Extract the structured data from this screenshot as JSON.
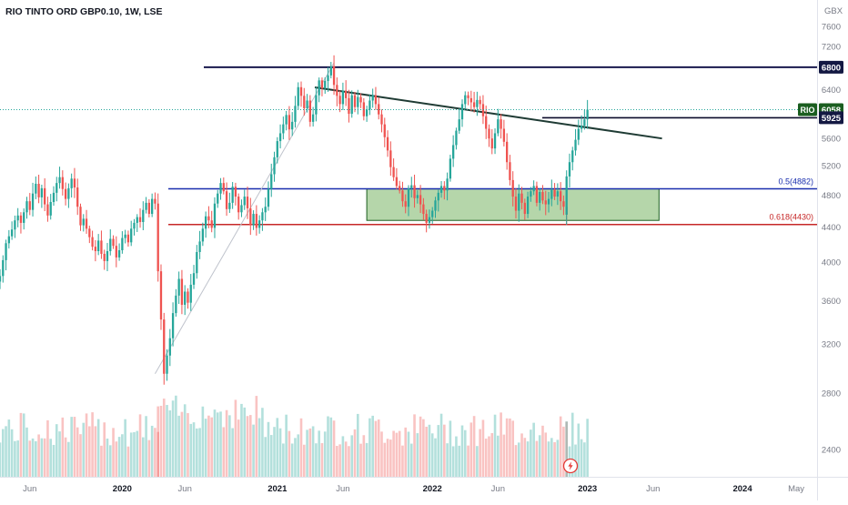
{
  "chart_data": {
    "type": "candlestick",
    "title": "RIO TINTO ORD GBP0.10, 1W, LSE",
    "currency": "GBX",
    "ylim": [
      2100,
      7900
    ],
    "y_ticks": [
      2400,
      2800,
      3200,
      3600,
      4000,
      4400,
      4800,
      5200,
      5600,
      6000,
      6400,
      6800,
      7200,
      7600
    ],
    "x_range": [
      "2019-03-25",
      "2024-06-24"
    ],
    "x_ticks": [
      {
        "label": "Jun",
        "date": "2019-06-03"
      },
      {
        "label": "2020",
        "date": "2020-01-06"
      },
      {
        "label": "Jun",
        "date": "2020-06-01"
      },
      {
        "label": "2021",
        "date": "2021-01-04"
      },
      {
        "label": "Jun",
        "date": "2021-06-07"
      },
      {
        "label": "2022",
        "date": "2022-01-03"
      },
      {
        "label": "Jun",
        "date": "2022-06-06"
      },
      {
        "label": "2023",
        "date": "2023-01-02"
      },
      {
        "label": "Jun",
        "date": "2023-06-05"
      },
      {
        "label": "2024",
        "date": "2024-01-01"
      },
      {
        "label": "May",
        "date": "2024-05-06"
      }
    ],
    "series_weekly_closes": [
      {
        "start": "2019-03-25",
        "closes": [
          3850,
          4020,
          4210,
          4290,
          4370,
          4480,
          4540,
          4450,
          4580,
          4720,
          4610,
          4820,
          4950,
          4770,
          4890,
          4680,
          4540,
          4710,
          4830,
          4960,
          5040,
          4880,
          4750,
          4890,
          5020,
          4900,
          4650,
          4420,
          4500,
          4380,
          4280,
          4170,
          4120,
          4240,
          4090,
          4010,
          4120,
          4260,
          4180,
          4050,
          4130,
          4270,
          4310,
          4220,
          4380,
          4450,
          4520,
          4460,
          4610,
          4700,
          4560,
          4750,
          4690,
          4460
        ]
      },
      {
        "start": "2020-03-30",
        "closes": [
          3900,
          3420,
          2950,
          3100,
          3250,
          3480,
          3650,
          3820,
          3560,
          3690,
          3580,
          3760,
          3880,
          4110,
          4230,
          4380,
          4530,
          4480,
          4390,
          4690,
          4820,
          4960,
          4850,
          4620,
          4700,
          4910,
          4780,
          4580,
          4670,
          4780,
          4630,
          4420,
          4560,
          4390,
          4480,
          4580,
          4650,
          4880,
          5080,
          5320,
          5560,
          5680,
          5820,
          5970,
          5740,
          5860,
          6120,
          6440,
          6290,
          6080,
          6210,
          5860,
          5980,
          6300,
          6560,
          6420,
          6550
        ]
      },
      {
        "start": "2021-05-03",
        "closes": [
          6650,
          6820,
          6480,
          6290,
          6150,
          6380,
          6250,
          5990,
          6300,
          6100,
          6270,
          6180,
          5950,
          6060,
          6210,
          6300,
          6150,
          5980,
          5820,
          5620,
          5420,
          5180,
          5040,
          4920,
          4860,
          4720,
          4650,
          4890,
          4930,
          4760,
          4800,
          4680,
          4560,
          4450,
          4520,
          4600,
          4730,
          4830,
          4920,
          4860,
          5020,
          5300,
          5500,
          5720,
          5900,
          6150,
          6300,
          6250,
          6180,
          6100,
          6220,
          6150,
          5950,
          5750,
          5600,
          5450,
          5680,
          5900,
          5750,
          5550,
          5250,
          5000,
          4780,
          4600,
          4820,
          4700,
          4560,
          4780,
          4850,
          4920,
          4700,
          4840,
          4730,
          4680,
          4750,
          4870,
          4780,
          4850,
          4720,
          4650,
          4550
        ]
      },
      {
        "start": "2022-11-14",
        "closes": [
          5050,
          5250,
          5420,
          5580,
          5750,
          5800,
          5900,
          6058
        ]
      }
    ],
    "last_price_label": "RIO",
    "last_price": 6058,
    "levels": [
      {
        "label": "",
        "price": 6800,
        "style": "dark-blue"
      },
      {
        "label": "",
        "price": 5925,
        "style": "black"
      },
      {
        "label": "0.5(4882)",
        "price": 4882,
        "style": "blue"
      },
      {
        "label": "0.618(4430)",
        "price": 4430,
        "style": "red"
      }
    ],
    "price_labels": [
      "6800",
      "6058",
      "5925"
    ],
    "trendline": {
      "from": {
        "date": "2021-05-17",
        "price": 6880
      },
      "to": {
        "date": "2023-06-26",
        "price": 5600
      }
    },
    "fib_anchor_line": {
      "from": {
        "date": "2020-03-23",
        "price": 2950
      },
      "to": {
        "date": "2021-05-17",
        "price": 6880
      }
    },
    "support_zone": {
      "from_date": "2021-08-02",
      "to_date": "2023-06-19",
      "top": 4882,
      "bottom": 4480
    },
    "volume_note": "relative volume bars"
  },
  "ui": {
    "alert_icon": "lightning-icon",
    "colors": {
      "up": "#26a69a",
      "down": "#ef5350",
      "level_blue": "#1a2fae",
      "level_red": "#c62828",
      "zone": "#a8cf9b"
    }
  }
}
